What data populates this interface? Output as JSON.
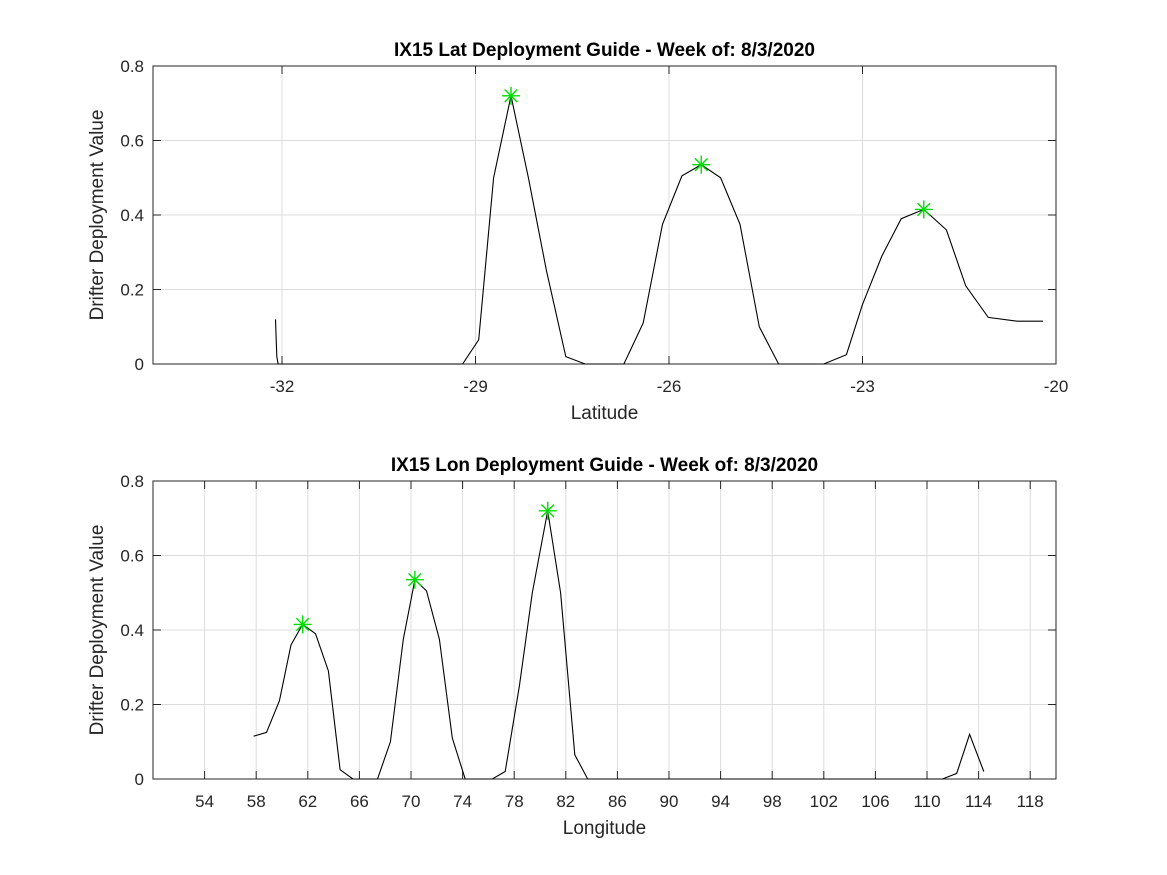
{
  "chart_data": [
    {
      "type": "line",
      "title": "IX15 Lat Deployment Guide - Week of: 8/3/2020",
      "xlabel": "Latitude",
      "ylabel": "Drifter Deployment Value",
      "xlim": [
        -34,
        -20
      ],
      "ylim": [
        0,
        0.8
      ],
      "xticks": [
        -32,
        -29,
        -26,
        -23,
        -20
      ],
      "yticks": [
        0,
        0.2,
        0.4,
        0.6,
        0.8
      ],
      "grid": true,
      "series": [
        {
          "x": [
            -32.1,
            -32.08,
            -32.06,
            -30,
            -29.2,
            -28.95,
            -28.72,
            -28.45,
            -28.18,
            -27.9,
            -27.6,
            -27.3,
            -27,
            -26.7,
            -26.4,
            -26.1,
            -25.8,
            -25.5,
            -25.2,
            -24.9,
            -24.6,
            -24.3,
            -24,
            -23.6,
            -23.25,
            -23,
            -22.7,
            -22.4,
            -22.05,
            -21.7,
            -21.4,
            -21.05,
            -20.6,
            -20.2
          ],
          "y": [
            0.12,
            0.02,
            0,
            0,
            0,
            0.065,
            0.5,
            0.72,
            0.5,
            0.25,
            0.02,
            0,
            0,
            0,
            0.11,
            0.375,
            0.505,
            0.535,
            0.5,
            0.375,
            0.1,
            0,
            0,
            0,
            0.025,
            0.16,
            0.29,
            0.39,
            0.415,
            0.36,
            0.21,
            0.125,
            0.115,
            0.115
          ]
        }
      ],
      "markers": [
        {
          "x": -28.45,
          "y": 0.72
        },
        {
          "x": -25.5,
          "y": 0.535
        },
        {
          "x": -22.05,
          "y": 0.415
        }
      ],
      "marker_color": "#00dd00",
      "line_color": "#000000"
    },
    {
      "type": "line",
      "title": "IX15 Lon Deployment Guide - Week of: 8/3/2020",
      "xlabel": "Longitude",
      "ylabel": "Drifter Deployment Value",
      "xlim": [
        50,
        120
      ],
      "ylim": [
        0,
        0.8
      ],
      "xticks": [
        54,
        58,
        62,
        66,
        70,
        74,
        78,
        82,
        86,
        90,
        94,
        98,
        102,
        106,
        110,
        114,
        118
      ],
      "yticks": [
        0,
        0.2,
        0.4,
        0.6,
        0.8
      ],
      "grid": true,
      "series": [
        {
          "x": [
            57.8,
            58.8,
            59.8,
            60.7,
            61.6,
            62.6,
            63.6,
            64.5,
            65.5,
            66.4,
            67.4,
            68.4,
            69.4,
            70.3,
            71.2,
            72.2,
            73.2,
            74.2,
            75.2,
            76.3,
            77.3,
            78.4,
            79.4,
            80.6,
            81.6,
            82.7,
            83.7,
            90,
            100,
            111.2,
            112.3,
            113.3,
            114.4
          ],
          "y": [
            0.115,
            0.125,
            0.21,
            0.36,
            0.415,
            0.39,
            0.29,
            0.025,
            0,
            0,
            0,
            0.1,
            0.375,
            0.535,
            0.505,
            0.375,
            0.11,
            0,
            0,
            0,
            0.02,
            0.25,
            0.5,
            0.72,
            0.5,
            0.065,
            0,
            0,
            0,
            0,
            0.015,
            0.12,
            0.02
          ]
        }
      ],
      "markers": [
        {
          "x": 61.6,
          "y": 0.415
        },
        {
          "x": 70.3,
          "y": 0.535
        },
        {
          "x": 80.6,
          "y": 0.72
        }
      ],
      "marker_color": "#00dd00",
      "line_color": "#000000"
    }
  ]
}
